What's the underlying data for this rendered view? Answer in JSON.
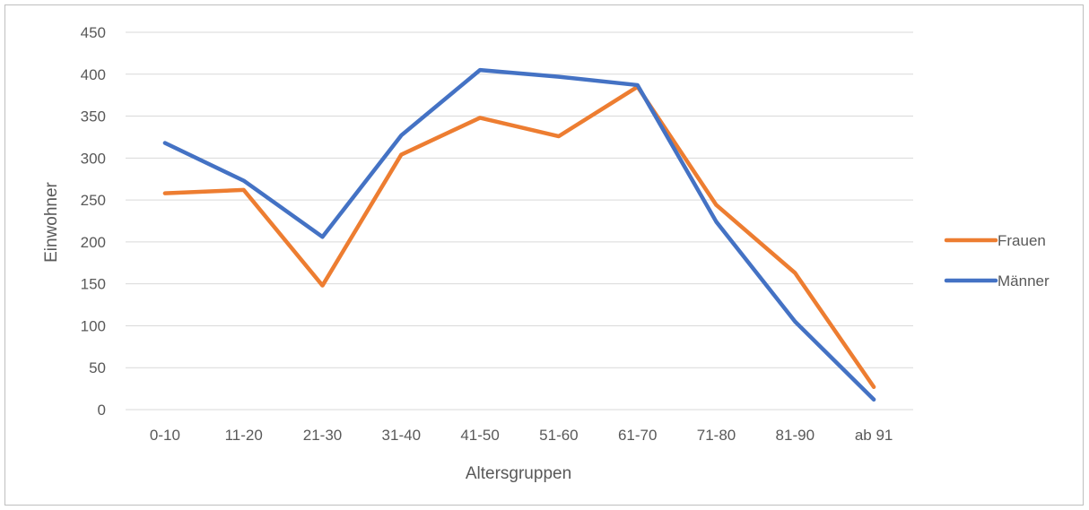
{
  "chart_data": {
    "type": "line",
    "categories": [
      "0-10",
      "11-20",
      "21-30",
      "31-40",
      "41-50",
      "51-60",
      "61-70",
      "71-80",
      "81-90",
      "ab 91"
    ],
    "series": [
      {
        "name": "Frauen",
        "color": "#ed7d31",
        "values": [
          258,
          262,
          148,
          304,
          348,
          326,
          385,
          244,
          163,
          27
        ]
      },
      {
        "name": "Männer",
        "color": "#4472c4",
        "values": [
          318,
          273,
          206,
          327,
          405,
          397,
          387,
          224,
          105,
          12
        ]
      }
    ],
    "xlabel": "Altersgruppen",
    "ylabel": "Einwohner",
    "ylim": [
      0,
      450
    ],
    "yticks": [
      0,
      50,
      100,
      150,
      200,
      250,
      300,
      350,
      400,
      450
    ],
    "grid": true,
    "legend_position": "right"
  }
}
